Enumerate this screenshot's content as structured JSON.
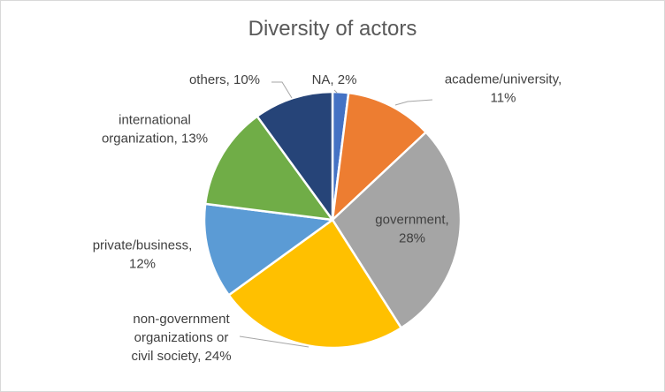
{
  "chart_data": {
    "type": "pie",
    "title": "Diversity of actors",
    "slices": [
      {
        "name": "NA",
        "value": 2,
        "color": "#4472c4",
        "label_lines": [
          "NA, 2%"
        ]
      },
      {
        "name": "academe/university",
        "value": 11,
        "color": "#ed7d31",
        "label_lines": [
          "academe/university,",
          "11%"
        ]
      },
      {
        "name": "government",
        "value": 28,
        "color": "#a5a5a5",
        "label_lines": [
          "government,",
          "28%"
        ]
      },
      {
        "name": "non-government organizations or civil society",
        "value": 24,
        "color": "#ffc000",
        "label_lines": [
          "non-government",
          "organizations or",
          "civil society, 24%"
        ]
      },
      {
        "name": "private/business",
        "value": 12,
        "color": "#5b9bd5",
        "label_lines": [
          "private/business,",
          "12%"
        ]
      },
      {
        "name": "international organization",
        "value": 13,
        "color": "#70ad47",
        "label_lines": [
          "international",
          "organization, 13%"
        ]
      },
      {
        "name": "others",
        "value": 10,
        "color": "#264478",
        "label_lines": [
          "others, 10%"
        ]
      }
    ],
    "data_labels": "category, percentage",
    "legend": "none",
    "start_angle": "12 o'clock, clockwise"
  }
}
